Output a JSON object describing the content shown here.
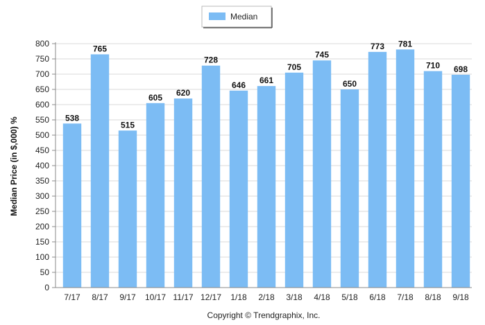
{
  "chart_data": {
    "type": "bar",
    "categories": [
      "7/17",
      "8/17",
      "9/17",
      "10/17",
      "11/17",
      "12/17",
      "1/18",
      "2/18",
      "3/18",
      "4/18",
      "5/18",
      "6/18",
      "7/18",
      "8/18",
      "9/18"
    ],
    "series": [
      {
        "name": "Median",
        "values": [
          538,
          765,
          515,
          605,
          620,
          728,
          646,
          661,
          705,
          745,
          650,
          773,
          781,
          710,
          698
        ],
        "color": "#7cbcf4"
      }
    ],
    "ylabel": "Median Price (in $,000) %",
    "ylim": [
      0,
      800
    ],
    "yticks": [
      0,
      50,
      100,
      150,
      200,
      250,
      300,
      350,
      400,
      450,
      500,
      550,
      600,
      650,
      700,
      750,
      800
    ],
    "grid": true,
    "legend": "top-center",
    "data_labels": true
  },
  "footer": {
    "copyright": "Copyright © Trendgraphix, Inc."
  }
}
